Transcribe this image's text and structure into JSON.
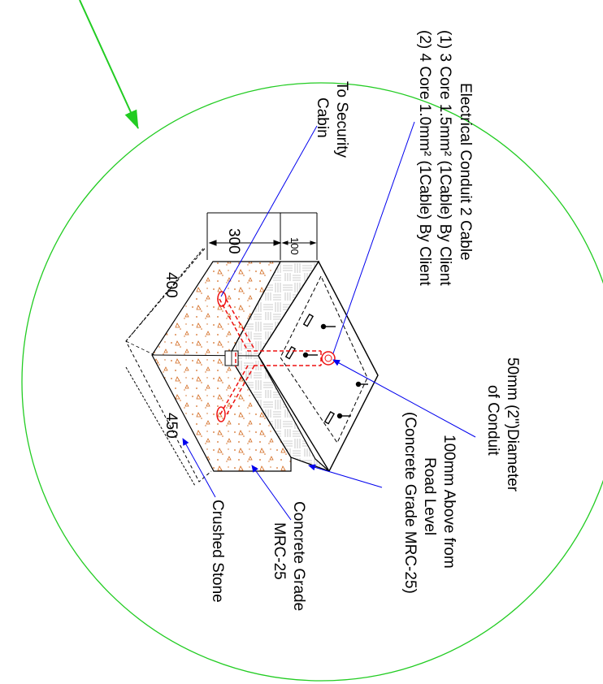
{
  "colors": {
    "detail_circle": "#22cc22",
    "leader": "#0000ee",
    "conduit": "#ee1111",
    "concrete_dots": "#d2691e",
    "outline": "#000000"
  },
  "labels": {
    "electrical_conduit": {
      "line1": "Electrical Conduit 2 Cable",
      "line2": "(1) 3 Core 1.5mm² (1Cable) By Client",
      "line3": "(2) 4 Core 1.0mm² (1Cable) By Client"
    },
    "to_security": {
      "line1": "To Security",
      "line2": "Cabin"
    },
    "conduit_diameter": {
      "line1": "50mm (2\")Diameter",
      "line2": "of Conduit"
    },
    "above_road": {
      "line1": "100mm Above from",
      "line2": "Road Level",
      "line3": "(Concrete Grade MRC-25)"
    },
    "concrete_grade": {
      "line1": "Concrete Grade",
      "line2": "MRC-25"
    },
    "crushed_stone": "Crushed Stone"
  },
  "dimensions": {
    "d300": "300",
    "d100": "100",
    "d400": "400",
    "d450": "450"
  }
}
